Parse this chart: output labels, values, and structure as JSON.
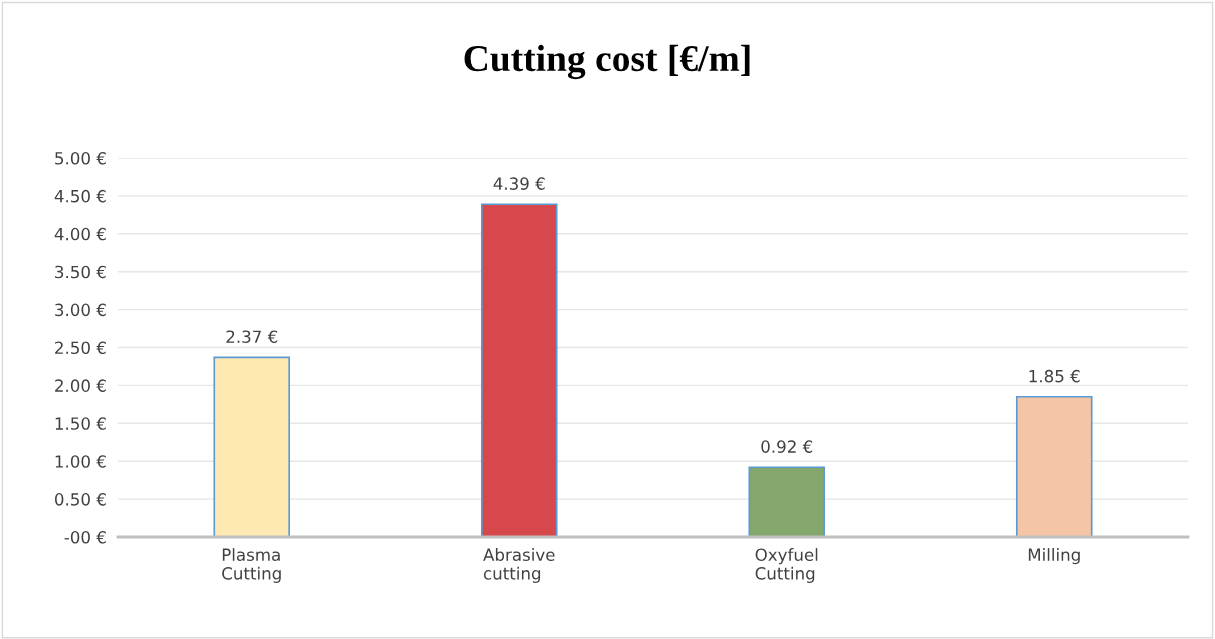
{
  "chart_data": {
    "type": "bar",
    "title": "Cutting cost [€/m]",
    "categories": [
      "Plasma\nCutting",
      "Abrasive\ncutting",
      "Oxyfuel\nCutting",
      "Milling"
    ],
    "values": [
      2.37,
      4.39,
      0.92,
      1.85
    ],
    "colors": [
      "#ffe9b3",
      "#d6484b",
      "#84a86c",
      "#f5c6a5"
    ],
    "value_labels": [
      "2.37 €",
      "4.39 €",
      "0.92 €",
      "1.85 €"
    ],
    "ylim": [
      0,
      5
    ],
    "yticks": [
      {
        "value": 0,
        "label": "-00 €"
      },
      {
        "value": 0.5,
        "label": "0.50 €"
      },
      {
        "value": 1,
        "label": "1.00 €"
      },
      {
        "value": 1.5,
        "label": "1.50 €"
      },
      {
        "value": 2,
        "label": "2.00 €"
      },
      {
        "value": 2.5,
        "label": "2.50 €"
      },
      {
        "value": 3,
        "label": "3.00 €"
      },
      {
        "value": 3.5,
        "label": "3.50 €"
      },
      {
        "value": 4,
        "label": "4.00 €"
      },
      {
        "value": 4.5,
        "label": "4.50 €"
      },
      {
        "value": 5,
        "label": "5.00 €"
      }
    ],
    "grid": "y"
  }
}
